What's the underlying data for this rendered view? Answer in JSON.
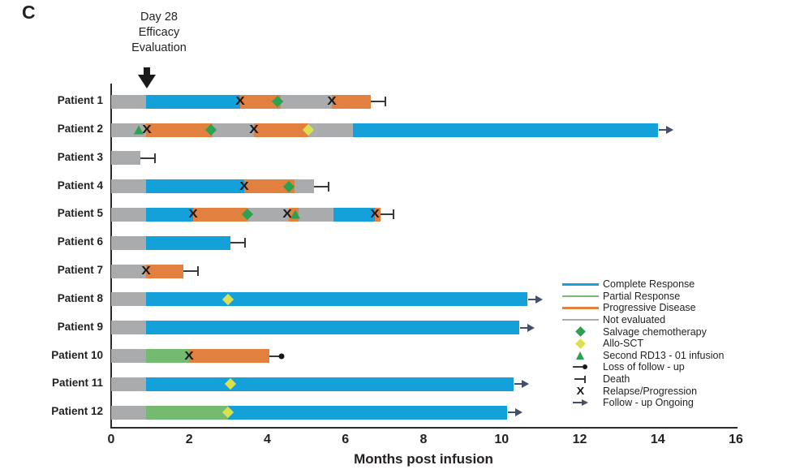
{
  "panel_label": "C",
  "annotation": {
    "lines": [
      "Day 28",
      "Efficacy",
      "Evaluation"
    ]
  },
  "axis": {
    "label": "Months post infusion",
    "ticks": [
      0,
      2,
      4,
      6,
      8,
      10,
      12,
      14,
      16
    ],
    "min": 0,
    "max": 16
  },
  "colors": {
    "complete_response": "#14a0d8",
    "partial_response": "#74bb71",
    "progressive_disease": "#e2813f",
    "not_evaluated": "#a9abad",
    "salvage": "#2ba24f",
    "allo_sct": "#dde04e",
    "second_infusion": "#2ba24f",
    "marker_black": "#17181a",
    "end_line": "#3a3a3a",
    "ongoing_arrow": "#42506b",
    "text": "#231f20"
  },
  "legend": [
    {
      "label": "Complete Response",
      "icon": "line",
      "color_key": "complete_response"
    },
    {
      "label": "Partial Response",
      "icon": "line",
      "color_key": "partial_response"
    },
    {
      "label": "Progressive Disease",
      "icon": "line",
      "color_key": "progressive_disease"
    },
    {
      "label": "Not evaluated",
      "icon": "line",
      "color_key": "not_evaluated"
    },
    {
      "label": "Salvage chemotherapy",
      "icon": "diamond",
      "color_key": "salvage"
    },
    {
      "label": "Allo-SCT",
      "icon": "diamond",
      "color_key": "allo_sct"
    },
    {
      "label": "Second RD13 - 01 infusion",
      "icon": "triangle",
      "color_key": "second_infusion"
    },
    {
      "label": "Loss of follow - up",
      "icon": "loss",
      "color_key": "end_line"
    },
    {
      "label": "Death",
      "icon": "death",
      "color_key": "end_line"
    },
    {
      "label": "Relapse/Progression",
      "icon": "x",
      "color_key": "marker_black"
    },
    {
      "label": "Follow - up Ongoing",
      "icon": "arrow",
      "color_key": "ongoing_arrow"
    }
  ],
  "chart_data": {
    "type": "swimmer",
    "xlabel": "Months post infusion",
    "xlim": [
      0,
      16
    ],
    "states": {
      "CR": {
        "label": "Complete Response",
        "color_key": "complete_response"
      },
      "PR": {
        "label": "Partial Response",
        "color_key": "partial_response"
      },
      "PD": {
        "label": "Progressive Disease",
        "color_key": "progressive_disease"
      },
      "NE": {
        "label": "Not evaluated",
        "color_key": "not_evaluated"
      }
    },
    "patients": [
      {
        "label": "Patient 1",
        "segments": [
          {
            "state": "NE",
            "start": 0,
            "end": 0.9
          },
          {
            "state": "CR",
            "start": 0.9,
            "end": 3.3
          },
          {
            "state": "PD",
            "start": 3.3,
            "end": 4.35
          },
          {
            "state": "NE",
            "start": 4.35,
            "end": 5.65
          },
          {
            "state": "PD",
            "start": 5.65,
            "end": 6.65
          }
        ],
        "markers": [
          {
            "type": "relapse",
            "x": 3.3
          },
          {
            "type": "salvage",
            "x": 4.25
          },
          {
            "type": "relapse",
            "x": 5.65
          }
        ],
        "end_marker": {
          "type": "death",
          "x": 7.0
        }
      },
      {
        "label": "Patient 2",
        "segments": [
          {
            "state": "NE",
            "start": 0,
            "end": 0.9
          },
          {
            "state": "PD",
            "start": 0.9,
            "end": 2.6
          },
          {
            "state": "NE",
            "start": 2.6,
            "end": 3.65
          },
          {
            "state": "PD",
            "start": 3.65,
            "end": 5.05
          },
          {
            "state": "NE",
            "start": 5.05,
            "end": 6.2
          },
          {
            "state": "CR",
            "start": 6.2,
            "end": 14.0
          }
        ],
        "markers": [
          {
            "type": "second_infusion",
            "x": 0.7
          },
          {
            "type": "relapse",
            "x": 0.92
          },
          {
            "type": "salvage",
            "x": 2.55
          },
          {
            "type": "relapse",
            "x": 3.65
          },
          {
            "type": "allo_sct",
            "x": 5.05
          }
        ],
        "end_marker": {
          "type": "ongoing",
          "x": 14.0
        }
      },
      {
        "label": "Patient 3",
        "segments": [
          {
            "state": "NE",
            "start": 0,
            "end": 0.75
          }
        ],
        "markers": [],
        "end_marker": {
          "type": "death",
          "x": 1.1
        }
      },
      {
        "label": "Patient 4",
        "segments": [
          {
            "state": "NE",
            "start": 0,
            "end": 0.9
          },
          {
            "state": "CR",
            "start": 0.9,
            "end": 3.4
          },
          {
            "state": "PD",
            "start": 3.4,
            "end": 4.7
          },
          {
            "state": "NE",
            "start": 4.7,
            "end": 5.2
          }
        ],
        "markers": [
          {
            "type": "relapse",
            "x": 3.4
          },
          {
            "type": "salvage",
            "x": 4.55
          }
        ],
        "end_marker": {
          "type": "death",
          "x": 5.55
        }
      },
      {
        "label": "Patient 5",
        "segments": [
          {
            "state": "NE",
            "start": 0,
            "end": 0.9
          },
          {
            "state": "CR",
            "start": 0.9,
            "end": 2.1
          },
          {
            "state": "PD",
            "start": 2.1,
            "end": 3.5
          },
          {
            "state": "NE",
            "start": 3.5,
            "end": 4.55
          },
          {
            "state": "PD",
            "start": 4.55,
            "end": 4.8
          },
          {
            "state": "NE",
            "start": 4.8,
            "end": 5.7
          },
          {
            "state": "CR",
            "start": 5.7,
            "end": 6.75
          },
          {
            "state": "PD",
            "start": 6.75,
            "end": 6.9
          }
        ],
        "markers": [
          {
            "type": "relapse",
            "x": 2.1
          },
          {
            "type": "salvage",
            "x": 3.5
          },
          {
            "type": "relapse",
            "x": 4.5
          },
          {
            "type": "second_infusion",
            "x": 4.72
          },
          {
            "type": "relapse",
            "x": 6.75
          }
        ],
        "end_marker": {
          "type": "death",
          "x": 7.2
        }
      },
      {
        "label": "Patient 6",
        "segments": [
          {
            "state": "NE",
            "start": 0,
            "end": 0.9
          },
          {
            "state": "CR",
            "start": 0.9,
            "end": 3.05
          }
        ],
        "markers": [],
        "end_marker": {
          "type": "death",
          "x": 3.4
        }
      },
      {
        "label": "Patient 7",
        "segments": [
          {
            "state": "NE",
            "start": 0,
            "end": 0.9
          },
          {
            "state": "PD",
            "start": 0.9,
            "end": 1.85
          }
        ],
        "markers": [
          {
            "type": "relapse",
            "x": 0.9
          }
        ],
        "end_marker": {
          "type": "death",
          "x": 2.2
        }
      },
      {
        "label": "Patient 8",
        "segments": [
          {
            "state": "NE",
            "start": 0,
            "end": 0.9
          },
          {
            "state": "CR",
            "start": 0.9,
            "end": 10.65
          }
        ],
        "markers": [
          {
            "type": "allo_sct",
            "x": 3.0
          }
        ],
        "end_marker": {
          "type": "ongoing",
          "x": 10.65
        }
      },
      {
        "label": "Patient 9",
        "segments": [
          {
            "state": "NE",
            "start": 0,
            "end": 0.9
          },
          {
            "state": "CR",
            "start": 0.9,
            "end": 10.45
          }
        ],
        "markers": [],
        "end_marker": {
          "type": "ongoing",
          "x": 10.45
        }
      },
      {
        "label": "Patient 10",
        "segments": [
          {
            "state": "NE",
            "start": 0,
            "end": 0.9
          },
          {
            "state": "PR",
            "start": 0.9,
            "end": 2.0
          },
          {
            "state": "PD",
            "start": 2.0,
            "end": 4.05
          }
        ],
        "markers": [
          {
            "type": "relapse",
            "x": 2.0
          }
        ],
        "end_marker": {
          "type": "loss",
          "x": 4.35
        }
      },
      {
        "label": "Patient 11",
        "segments": [
          {
            "state": "NE",
            "start": 0,
            "end": 0.9
          },
          {
            "state": "CR",
            "start": 0.9,
            "end": 10.3
          }
        ],
        "markers": [
          {
            "type": "allo_sct",
            "x": 3.05
          }
        ],
        "end_marker": {
          "type": "ongoing",
          "x": 10.3
        }
      },
      {
        "label": "Patient 12",
        "segments": [
          {
            "state": "NE",
            "start": 0,
            "end": 0.9
          },
          {
            "state": "PR",
            "start": 0.9,
            "end": 3.0
          },
          {
            "state": "CR",
            "start": 3.0,
            "end": 10.15
          }
        ],
        "markers": [
          {
            "type": "allo_sct",
            "x": 3.0
          }
        ],
        "end_marker": {
          "type": "ongoing",
          "x": 10.15
        }
      }
    ]
  }
}
